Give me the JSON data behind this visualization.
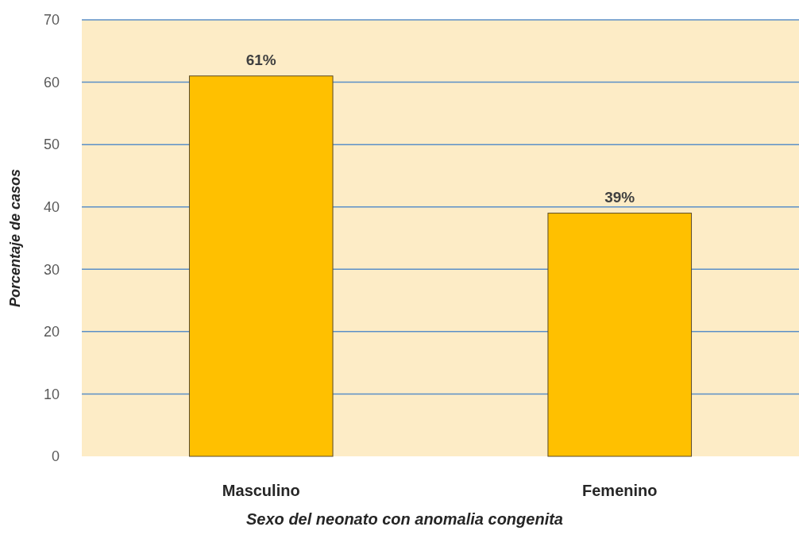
{
  "chart_data": {
    "type": "bar",
    "categories": [
      "Masculino",
      "Femenino"
    ],
    "values": [
      61,
      39
    ],
    "value_labels": [
      "61%",
      "39%"
    ],
    "color": "#ffc000",
    "xlabel": "Sexo del neonato con anomalia congenita",
    "ylabel": "Porcentaje de casos",
    "ylim": [
      0,
      70
    ],
    "yticks": [
      0,
      10,
      20,
      30,
      40,
      50,
      60,
      70
    ],
    "grid": "y"
  }
}
